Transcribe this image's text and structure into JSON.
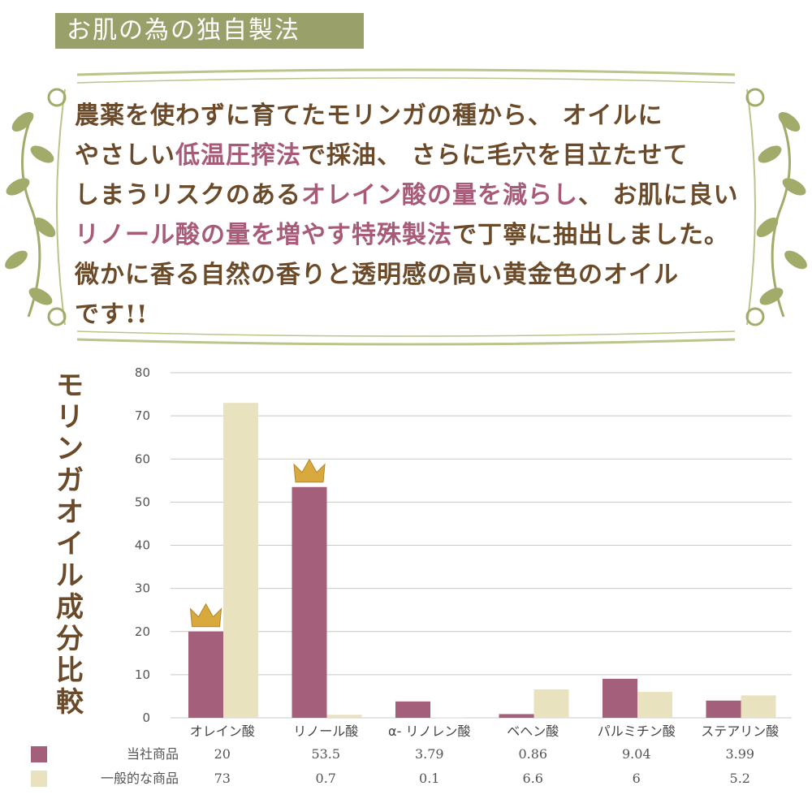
{
  "header": {
    "tag": "お肌の為の独自製法"
  },
  "intro": {
    "lines": [
      [
        {
          "t": "農薬を使わずに育てたモリンガの種から、 オイルに",
          "hl": false
        }
      ],
      [
        {
          "t": "やさしい",
          "hl": false
        },
        {
          "t": "低温圧搾法",
          "hl": true
        },
        {
          "t": "で採油、 さらに毛穴を目立たせて",
          "hl": false
        }
      ],
      [
        {
          "t": "しまうリスクのある",
          "hl": false
        },
        {
          "t": "オレイン酸の量を減らし",
          "hl": true
        },
        {
          "t": "、 お肌に良い",
          "hl": false
        }
      ],
      [
        {
          "t": "リノール酸の量を増やす特殊製法",
          "hl": true
        },
        {
          "t": "で丁寧に抽出しました。",
          "hl": false
        }
      ],
      [
        {
          "t": "微かに香る自然の香りと透明感の高い黄金色のオイル",
          "hl": false
        }
      ],
      [
        {
          "t": "です!!",
          "hl": false
        }
      ]
    ]
  },
  "colors": {
    "ours": "#a45f7b",
    "general": "#e9e2bf",
    "text": "#6b4a2a",
    "highlight": "#a75b78",
    "crown": "#d8a93c"
  },
  "chart_data": {
    "type": "bar",
    "title": "モリンガオイル成分比較",
    "categories": [
      "オレイン酸",
      "リノール酸",
      "α- リノレン酸",
      "ベヘン酸",
      "パルミチン酸",
      "ステアリン酸"
    ],
    "series": [
      {
        "name": "当社商品",
        "values": [
          20,
          53.5,
          3.79,
          0.86,
          9.04,
          3.99
        ]
      },
      {
        "name": "一般的な商品",
        "values": [
          73,
          0.7,
          0.1,
          6.6,
          6,
          5.2
        ]
      }
    ],
    "value_labels": {
      "ours": [
        "20",
        "53.5",
        "3.79",
        "0.86",
        "9.04",
        "3.99"
      ],
      "general": [
        "73",
        "0.7",
        "0.1",
        "6.6",
        "6",
        "5.2"
      ]
    },
    "ylim": [
      0,
      80
    ],
    "yticks": [
      "0",
      "10",
      "20",
      "30",
      "40",
      "50",
      "60",
      "70",
      "80"
    ],
    "crowned_categories": [
      "オレイン酸",
      "リノール酸"
    ],
    "grid": true,
    "legend": "table-below"
  }
}
